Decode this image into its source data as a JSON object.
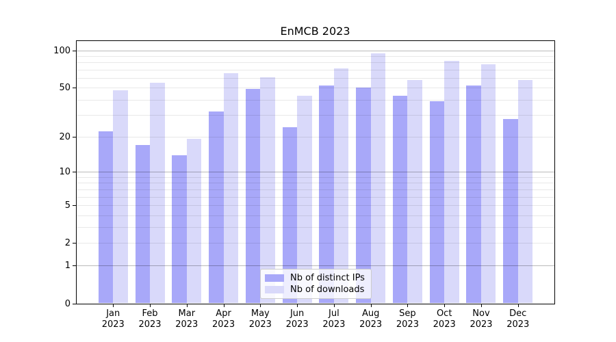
{
  "chart_data": {
    "type": "bar",
    "title": "EnMCB 2023",
    "categories": [
      "Jan",
      "Feb",
      "Mar",
      "Apr",
      "May",
      "Jun",
      "Jul",
      "Aug",
      "Sep",
      "Oct",
      "Nov",
      "Dec"
    ],
    "year_label": "2023",
    "series": [
      {
        "name": "Nb of distinct IPs",
        "color": "#a8a8f9",
        "values": [
          22,
          17,
          14,
          32,
          49,
          24,
          52,
          50,
          43,
          39,
          52,
          28
        ]
      },
      {
        "name": "Nb of downloads",
        "color": "#d9d9fa",
        "values": [
          48,
          55,
          19,
          66,
          61,
          43,
          72,
          95,
          58,
          82,
          77,
          58
        ]
      }
    ],
    "yscale": "log(1+x)",
    "yticks": [
      0,
      1,
      2,
      5,
      10,
      20,
      50,
      100
    ],
    "minor_yticks": [
      3,
      4,
      6,
      7,
      8,
      9,
      30,
      40,
      60,
      70,
      80,
      90
    ],
    "decade_gridlines": [
      1,
      10,
      100
    ],
    "minor_gridlines": [
      2,
      3,
      4,
      5,
      6,
      7,
      8,
      9,
      20,
      30,
      40,
      50,
      60,
      70,
      80,
      90
    ],
    "ylim": [
      0,
      120
    ],
    "grid": true,
    "legend_position": "bottom-center"
  }
}
